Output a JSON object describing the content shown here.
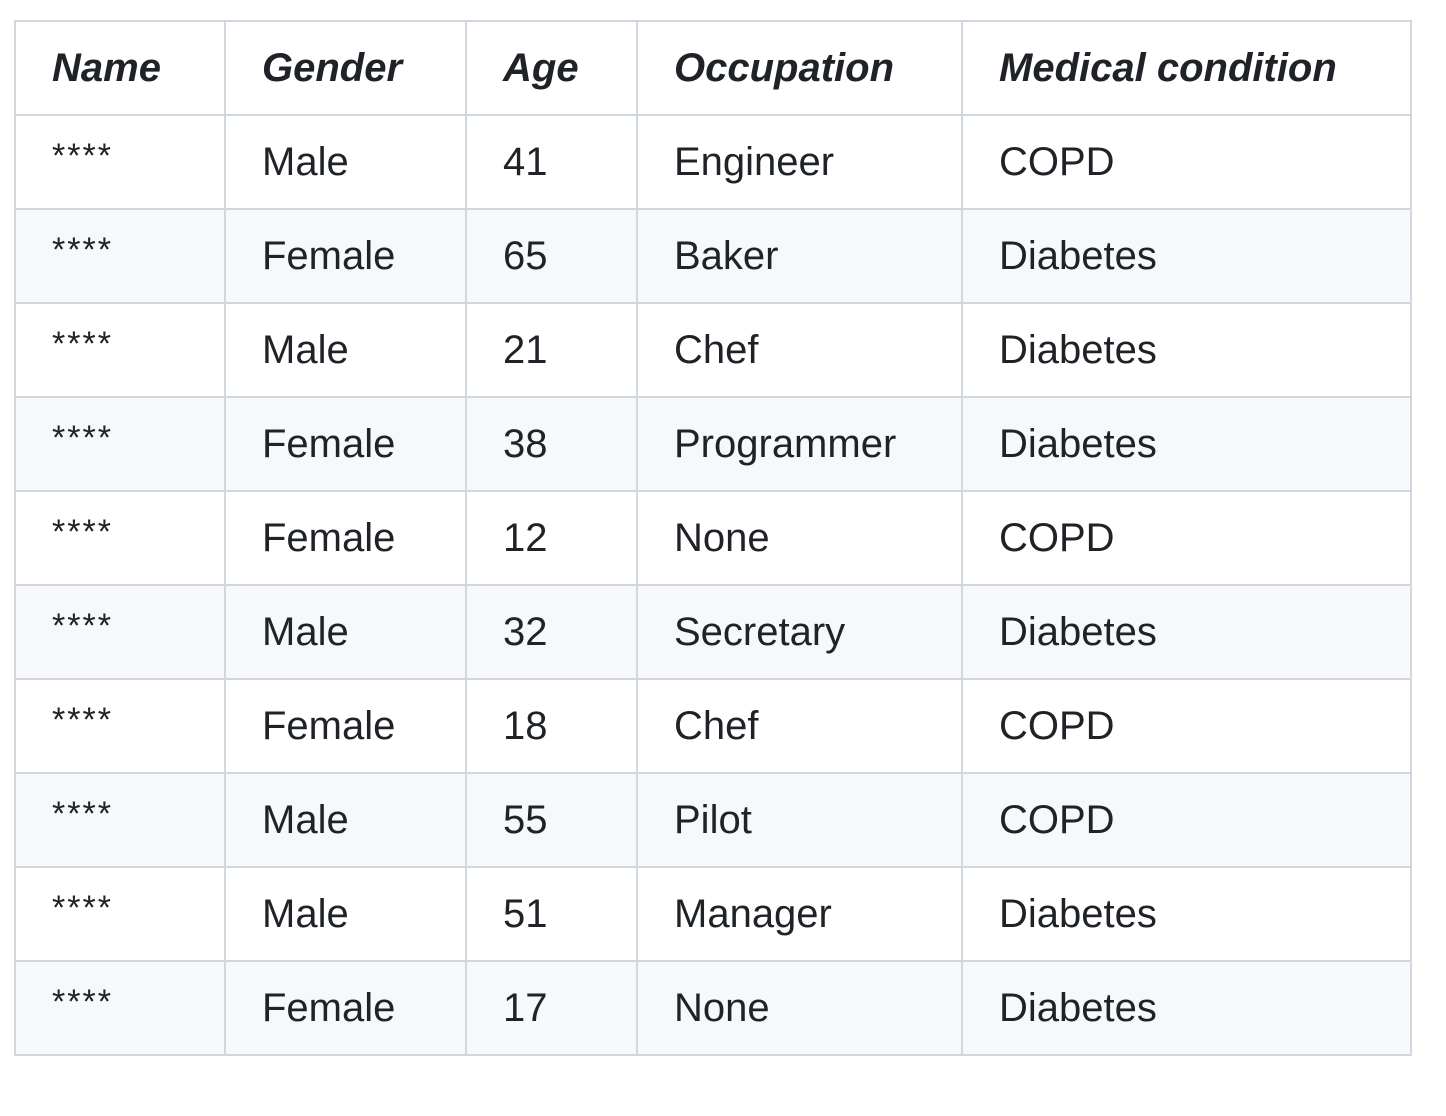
{
  "table": {
    "headers": [
      "Name",
      "Gender",
      "Age",
      "Occupation",
      "Medical condition"
    ],
    "rows": [
      [
        "****",
        "Male",
        "41",
        "Engineer",
        "COPD"
      ],
      [
        "****",
        "Female",
        "65",
        "Baker",
        "Diabetes"
      ],
      [
        "****",
        "Male",
        "21",
        "Chef",
        "Diabetes"
      ],
      [
        "****",
        "Female",
        "38",
        "Programmer",
        "Diabetes"
      ],
      [
        "****",
        "Female",
        "12",
        "None",
        "COPD"
      ],
      [
        "****",
        "Male",
        "32",
        "Secretary",
        "Diabetes"
      ],
      [
        "****",
        "Female",
        "18",
        "Chef",
        "COPD"
      ],
      [
        "****",
        "Male",
        "55",
        "Pilot",
        "COPD"
      ],
      [
        "****",
        "Male",
        "51",
        "Manager",
        "Diabetes"
      ],
      [
        "****",
        "Female",
        "17",
        "None",
        "Diabetes"
      ]
    ]
  },
  "colors": {
    "border": "#d0d7de",
    "stripe": "#f6f8fa",
    "text": "#1f2328"
  }
}
